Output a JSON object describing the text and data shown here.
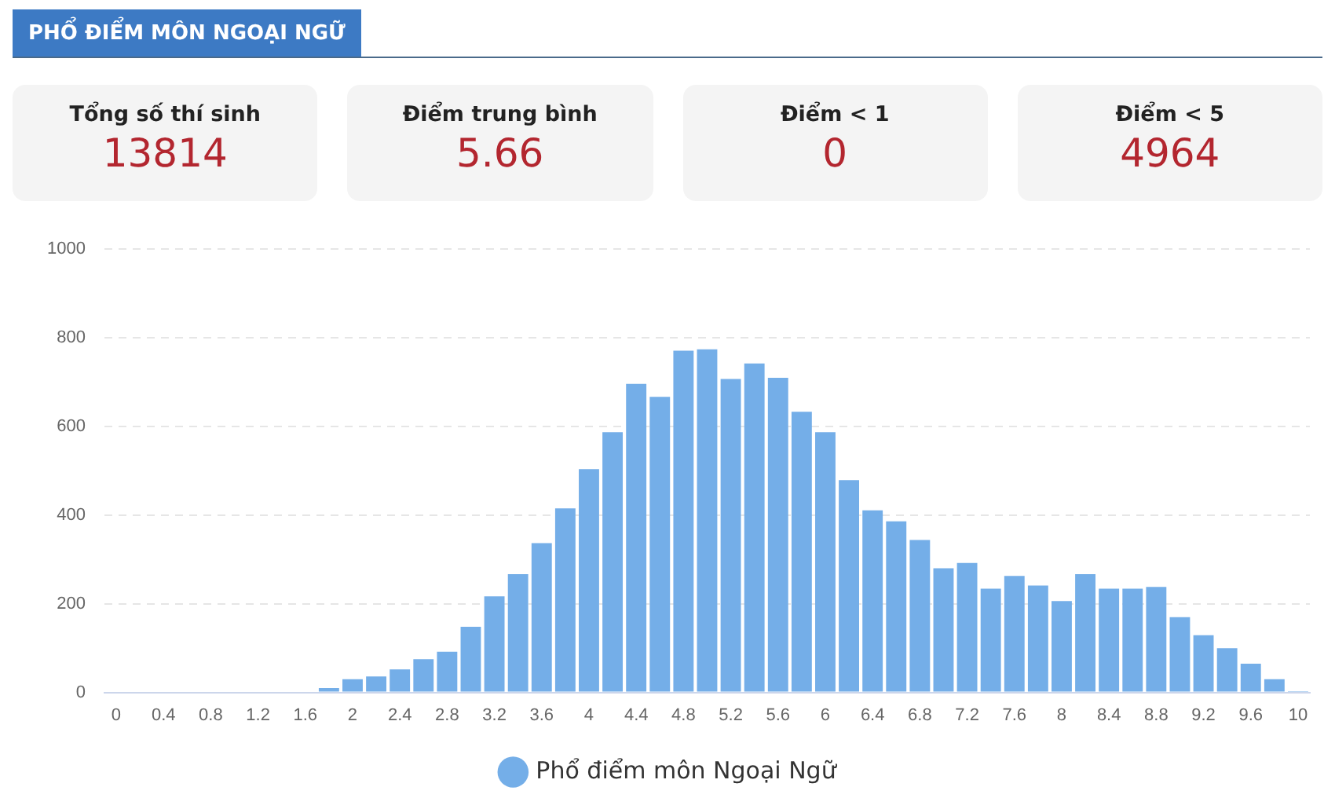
{
  "chart_data": {
    "type": "bar",
    "title": "PHỔ ĐIỂM MÔN NGOẠI NGỮ",
    "annotations": [
      "Tổng số thí sinh",
      "13814",
      "Điểm trung bình",
      "5.66",
      "Điểm < 1",
      "0",
      "Điểm < 5",
      "4964"
    ],
    "categories": [
      "0",
      null,
      "0.4",
      null,
      "0.8",
      null,
      "1.2",
      null,
      "1.6",
      null,
      "2",
      null,
      "2.4",
      null,
      "2.8",
      null,
      "3.2",
      null,
      "3.6",
      null,
      "4",
      null,
      "4.4",
      null,
      "4.8",
      null,
      "5.2",
      null,
      "5.6",
      null,
      "6",
      null,
      "6.4",
      null,
      "6.8",
      null,
      "7.2",
      null,
      "7.6",
      null,
      "8",
      null,
      "8.4",
      null,
      "8.8",
      null,
      "9.2",
      null,
      "9.6",
      null,
      "10"
    ],
    "series": [
      {
        "name": "Phổ điểm môn Ngoại Ngữ",
        "color": "#74aee8",
        "values": [
          0,
          0,
          0,
          0,
          0,
          0,
          0,
          0,
          0,
          10,
          30,
          36,
          52,
          75,
          92,
          148,
          217,
          267,
          337,
          415,
          504,
          587,
          696,
          667,
          771,
          774,
          707,
          742,
          710,
          633,
          587,
          479,
          411,
          386,
          344,
          280,
          292,
          234,
          263,
          241,
          206,
          267,
          234,
          234,
          238,
          170,
          129,
          100,
          65,
          30,
          3
        ]
      }
    ],
    "ylim": [
      0,
      1000
    ],
    "yticks": [
      0,
      200,
      400,
      600,
      800,
      1000
    ],
    "grid": "y",
    "legend": "bottom"
  }
}
